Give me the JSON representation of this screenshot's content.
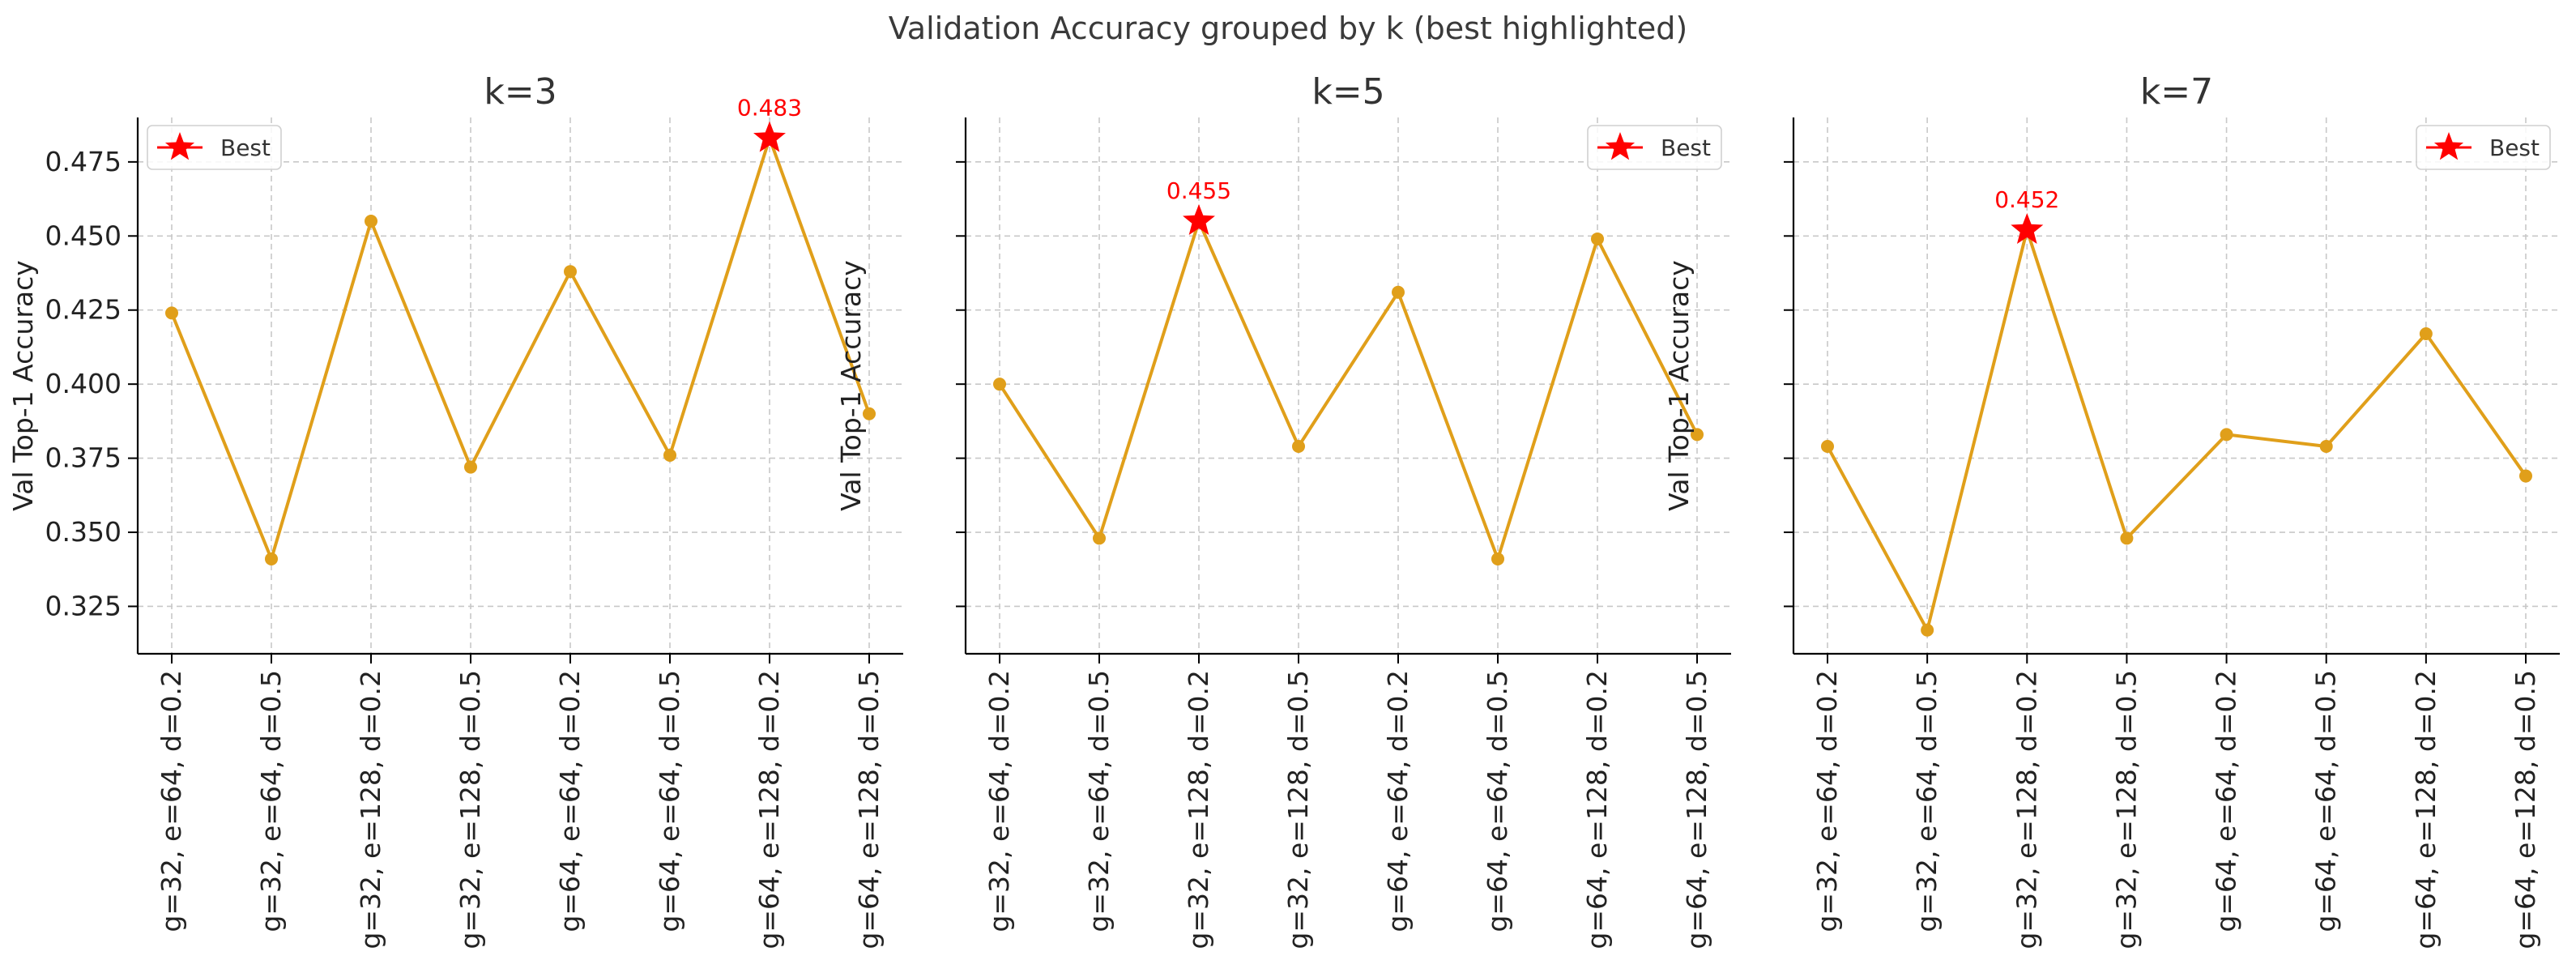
{
  "figure": {
    "suptitle": "Validation Accuracy grouped by k (best highlighted)",
    "line_color": "#e09f1a",
    "best_color": "#ff0000"
  },
  "chart_data": [
    {
      "type": "line",
      "title": "k=3",
      "xlabel": "",
      "ylabel": "Val Top-1 Accuracy",
      "categories": [
        "g=32, e=64, d=0.2",
        "g=32, e=64, d=0.5",
        "g=32, e=128, d=0.2",
        "g=32, e=128, d=0.5",
        "g=64, e=64, d=0.2",
        "g=64, e=64, d=0.5",
        "g=64, e=128, d=0.2",
        "g=64, e=128, d=0.5"
      ],
      "values": [
        0.424,
        0.341,
        0.455,
        0.372,
        0.438,
        0.376,
        0.483,
        0.39
      ],
      "best": {
        "index": 6,
        "value": 0.483,
        "label": "0.483"
      },
      "legend": {
        "label": "Best",
        "position": "top-left"
      },
      "ylim": [
        0.309,
        0.49
      ],
      "yticks": [
        0.325,
        0.35,
        0.375,
        0.4,
        0.425,
        0.45,
        0.475
      ],
      "ytick_labels": [
        "0.325",
        "0.350",
        "0.375",
        "0.400",
        "0.425",
        "0.450",
        "0.475"
      ],
      "grid": true
    },
    {
      "type": "line",
      "title": "k=5",
      "xlabel": "",
      "ylabel": "Val Top-1 Accuracy",
      "categories": [
        "g=32, e=64, d=0.2",
        "g=32, e=64, d=0.5",
        "g=32, e=128, d=0.2",
        "g=32, e=128, d=0.5",
        "g=64, e=64, d=0.2",
        "g=64, e=64, d=0.5",
        "g=64, e=128, d=0.2",
        "g=64, e=128, d=0.5"
      ],
      "values": [
        0.4,
        0.348,
        0.455,
        0.379,
        0.431,
        0.341,
        0.449,
        0.383
      ],
      "best": {
        "index": 2,
        "value": 0.455,
        "label": "0.455"
      },
      "legend": {
        "label": "Best",
        "position": "top-right"
      },
      "ylim": [
        0.309,
        0.49
      ],
      "yticks": [
        0.325,
        0.35,
        0.375,
        0.4,
        0.425,
        0.45,
        0.475
      ],
      "ytick_labels": [
        "",
        "",
        "",
        "",
        "",
        "",
        ""
      ],
      "grid": true
    },
    {
      "type": "line",
      "title": "k=7",
      "xlabel": "",
      "ylabel": "Val Top-1 Accuracy",
      "categories": [
        "g=32, e=64, d=0.2",
        "g=32, e=64, d=0.5",
        "g=32, e=128, d=0.2",
        "g=32, e=128, d=0.5",
        "g=64, e=64, d=0.2",
        "g=64, e=64, d=0.5",
        "g=64, e=128, d=0.2",
        "g=64, e=128, d=0.5"
      ],
      "values": [
        0.379,
        0.317,
        0.452,
        0.348,
        0.383,
        0.379,
        0.417,
        0.369
      ],
      "best": {
        "index": 2,
        "value": 0.452,
        "label": "0.452"
      },
      "legend": {
        "label": "Best",
        "position": "top-right"
      },
      "ylim": [
        0.309,
        0.49
      ],
      "yticks": [
        0.325,
        0.35,
        0.375,
        0.4,
        0.425,
        0.45,
        0.475
      ],
      "ytick_labels": [
        "",
        "",
        "",
        "",
        "",
        "",
        ""
      ],
      "grid": true
    }
  ]
}
